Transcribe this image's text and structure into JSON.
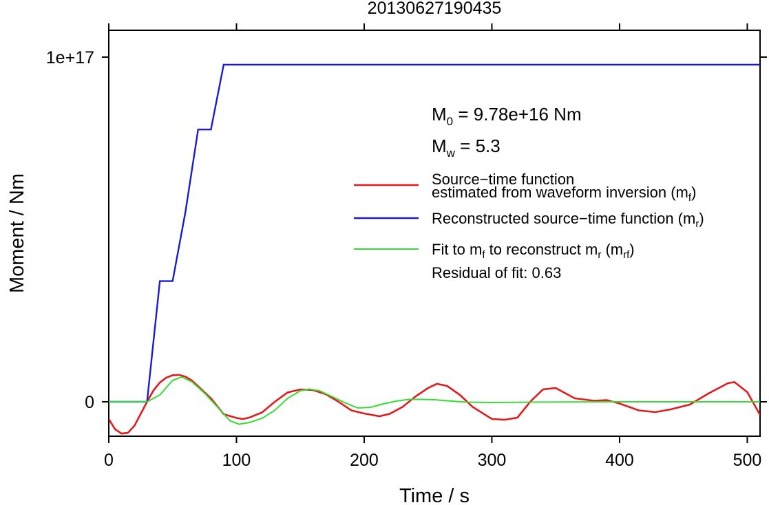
{
  "chart_data": {
    "type": "line",
    "title": "20130627190435",
    "xlabel": "Time / s",
    "ylabel": "Moment / Nm",
    "xlim": [
      0,
      510
    ],
    "ylim": [
      -1e+16,
      1.1e+17
    ],
    "x_ticks": [
      0,
      100,
      200,
      300,
      400,
      500
    ],
    "x_tick_labels": [
      "0",
      "100",
      "200",
      "300",
      "400",
      "500"
    ],
    "y_ticks": [
      0,
      1e+17
    ],
    "y_tick_labels": [
      "0",
      "1e+17"
    ],
    "grid": false,
    "legend_position": "right",
    "annotations": {
      "m0_label": "M",
      "m0_sub": "0",
      "m0_value": " = 9.78e+16 Nm",
      "mw_label": "M",
      "mw_sub": "w",
      "mw_value": " = 5.3",
      "residual": "Residual of fit: 0.63"
    },
    "legend": [
      {
        "color": "#e3191c",
        "line1": "Source−time function",
        "line2": "estimated from waveform inversion (m",
        "sub": "f",
        "close": ")"
      },
      {
        "color": "#1a1ad6",
        "line1": "Reconstructed source−time function (m",
        "sub": "r",
        "close": ")"
      },
      {
        "color": "#33dd33",
        "line1a": "Fit to m",
        "sub1": "f",
        "line1b": " to reconstruct m",
        "sub2": "r",
        "line1c": " (m",
        "sub3": "rf",
        "close": ")"
      }
    ],
    "series": [
      {
        "name": "Source−time function estimated from waveform inversion (mf)",
        "color": "#e3191c",
        "x": [
          0,
          5,
          10,
          15,
          20,
          25,
          30,
          35,
          40,
          45,
          50,
          55,
          60,
          65,
          70,
          80,
          90,
          100,
          105,
          110,
          120,
          130,
          140,
          150,
          160,
          170,
          180,
          190,
          200,
          212,
          220,
          230,
          240,
          250,
          257,
          265,
          275,
          285,
          300,
          310,
          320,
          330,
          340,
          350,
          365,
          380,
          390,
          400,
          415,
          428,
          440,
          455,
          470,
          485,
          490,
          500,
          510
        ],
        "y": [
          -5000000000000000.0,
          -8000000000000000.0,
          -9200000000000000.0,
          -9000000000000000.0,
          -7000000000000000.0,
          -3500000000000000.0,
          0,
          3300000000000000.0,
          5600000000000000.0,
          7000000000000000.0,
          7700000000000000.0,
          7800000000000000.0,
          7300000000000000.0,
          6200000000000000.0,
          4500000000000000.0,
          1000000000000000.0,
          -3600000000000000.0,
          -4700000000000000.0,
          -5000000000000000.0,
          -4600000000000000.0,
          -3100000000000000.0,
          0,
          2700000000000000.0,
          3600000000000000.0,
          3400000000000000.0,
          2200000000000000.0,
          0,
          -2500000000000000.0,
          -3400000000000000.0,
          -4200000000000000.0,
          -3500000000000000.0,
          -1500000000000000.0,
          1500000000000000.0,
          4000000000000000.0,
          5200000000000000.0,
          4600000000000000.0,
          2000000000000000.0,
          -1500000000000000.0,
          -5000000000000000.0,
          -5200000000000000.0,
          -4600000000000000.0,
          0,
          3600000000000000.0,
          4000000000000000.0,
          1000000000000000.0,
          300000000000000.0,
          500000000000000.0,
          -500000000000000.0,
          -2500000000000000.0,
          -3000000000000000.0,
          -2200000000000000.0,
          -800000000000000.0,
          2500000000000000.0,
          5400000000000000.0,
          5700000000000000.0,
          2800000000000000.0,
          -3800000000000000.0
        ]
      },
      {
        "name": "Reconstructed source−time function (mr)",
        "color": "#1a1ad6",
        "x": [
          0,
          30,
          40,
          50,
          60,
          70,
          80,
          90,
          510
        ],
        "y": [
          0,
          0,
          3.5e+16,
          3.5e+16,
          5.5e+16,
          7.9e+16,
          7.9e+16,
          9.78e+16,
          9.78e+16
        ]
      },
      {
        "name": "Fit to mf to reconstruct mr (mrf)",
        "color": "#33dd33",
        "x": [
          0,
          30,
          40,
          50,
          57,
          65,
          75,
          85,
          95,
          102,
          110,
          120,
          130,
          140,
          150,
          157,
          165,
          175,
          185,
          195,
          205,
          215,
          225,
          235,
          245,
          255,
          265,
          280,
          300,
          330,
          400,
          510
        ],
        "y": [
          0,
          0,
          2000000000000000.0,
          6200000000000000.0,
          7200000000000000.0,
          5800000000000000.0,
          2500000000000000.0,
          -1500000000000000.0,
          -5500000000000000.0,
          -6500000000000000.0,
          -6000000000000000.0,
          -4800000000000000.0,
          -2500000000000000.0,
          1000000000000000.0,
          3200000000000000.0,
          3700000000000000.0,
          3200000000000000.0,
          1500000000000000.0,
          -300000000000000.0,
          -1800000000000000.0,
          -1600000000000000.0,
          -600000000000000.0,
          200000000000000.0,
          700000000000000.0,
          700000000000000.0,
          600000000000000.0,
          300000000000000.0,
          -100000000000000.0,
          -200000000000000.0,
          -100000000000000.0,
          0,
          0
        ]
      }
    ]
  }
}
